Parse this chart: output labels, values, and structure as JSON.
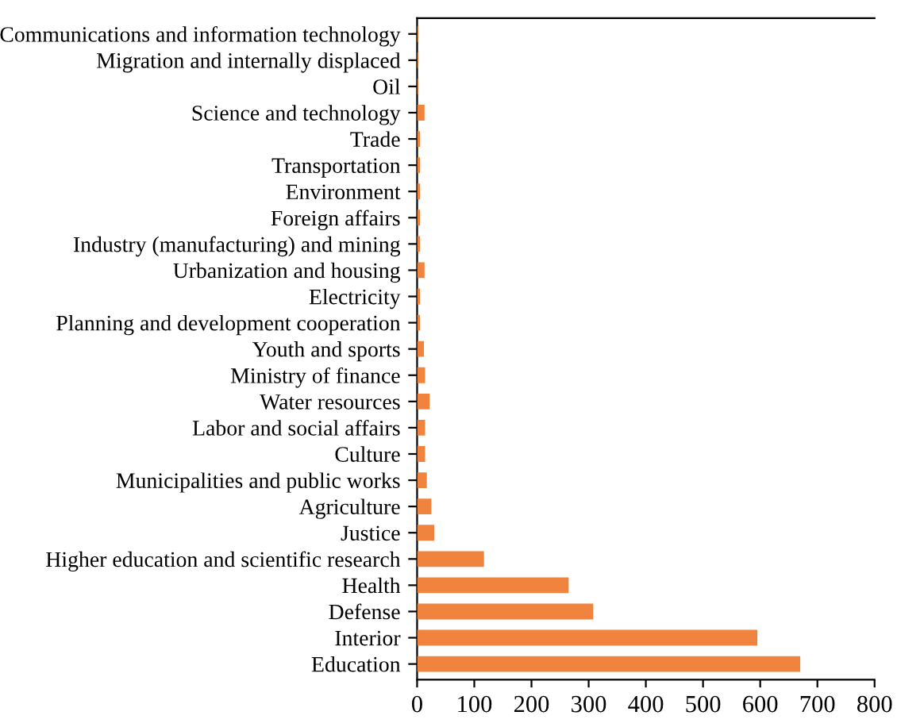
{
  "chart_data": {
    "type": "bar",
    "orientation": "horizontal",
    "color": "#f0843e",
    "categories": [
      "Communications and information technology",
      "Migration and internally displaced",
      "Oil",
      "Science and technology",
      "Trade",
      "Transportation",
      "Environment",
      "Foreign affairs",
      "Industry (manufacturing) and mining",
      "Urbanization and housing",
      "Electricity",
      "Planning and development cooperation",
      "Youth and sports",
      "Ministry of finance",
      "Water resources",
      "Labor and social affairs",
      "Culture",
      "Municipalities and public works",
      "Agriculture",
      "Justice",
      "Higher education and scientific research",
      "Health",
      "Defense",
      "Interior",
      "Education"
    ],
    "values": [
      2,
      2,
      2,
      13,
      5,
      5,
      5,
      5,
      5,
      13,
      5,
      5,
      12,
      14,
      22,
      14,
      14,
      17,
      25,
      30,
      117,
      265,
      308,
      595,
      670
    ],
    "xlim": [
      0,
      800
    ],
    "xticks": [
      0,
      100,
      200,
      300,
      400,
      500,
      600,
      700,
      800
    ],
    "grid": false
  }
}
